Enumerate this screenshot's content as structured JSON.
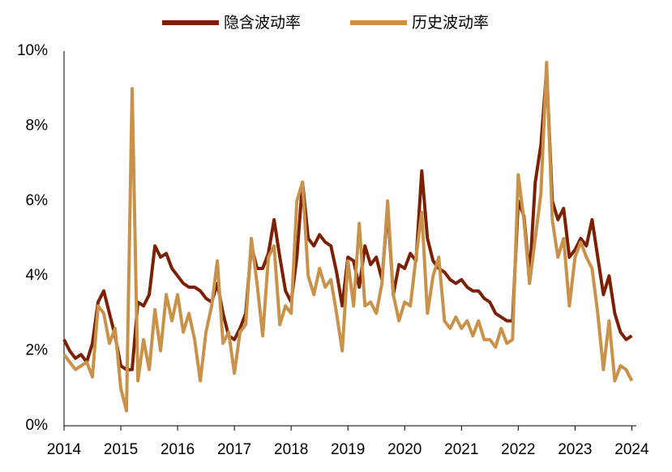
{
  "chart_data": {
    "type": "line",
    "x": [
      2014,
      2014.1,
      2014.2,
      2014.3,
      2014.4,
      2014.5,
      2014.6,
      2014.7,
      2014.8,
      2014.9,
      2015,
      2015.1,
      2015.2,
      2015.3,
      2015.4,
      2015.5,
      2015.6,
      2015.7,
      2015.8,
      2015.9,
      2016,
      2016.1,
      2016.2,
      2016.3,
      2016.4,
      2016.5,
      2016.6,
      2016.7,
      2016.8,
      2016.9,
      2017,
      2017.1,
      2017.2,
      2017.3,
      2017.4,
      2017.5,
      2017.6,
      2017.7,
      2017.8,
      2017.9,
      2018,
      2018.1,
      2018.2,
      2018.3,
      2018.4,
      2018.5,
      2018.6,
      2018.7,
      2018.8,
      2018.9,
      2019,
      2019.1,
      2019.2,
      2019.3,
      2019.4,
      2019.5,
      2019.6,
      2019.7,
      2019.8,
      2019.9,
      2020,
      2020.1,
      2020.2,
      2020.3,
      2020.4,
      2020.5,
      2020.6,
      2020.7,
      2020.8,
      2020.9,
      2021,
      2021.1,
      2021.2,
      2021.3,
      2021.4,
      2021.5,
      2021.6,
      2021.7,
      2021.8,
      2021.9,
      2022,
      2022.1,
      2022.2,
      2022.3,
      2022.4,
      2022.5,
      2022.6,
      2022.7,
      2022.8,
      2022.9,
      2023,
      2023.1,
      2023.2,
      2023.3,
      2023.4,
      2023.5,
      2023.6,
      2023.7,
      2023.8,
      2023.9,
      2024
    ],
    "series": [
      {
        "name": "隐含波动率",
        "color": "#7b2000",
        "values": [
          2.3,
          2.0,
          1.8,
          1.9,
          1.7,
          2.2,
          3.3,
          3.6,
          3.0,
          2.4,
          1.6,
          1.5,
          1.5,
          3.3,
          3.2,
          3.5,
          4.8,
          4.5,
          4.6,
          4.2,
          4.0,
          3.8,
          3.7,
          3.7,
          3.6,
          3.4,
          3.3,
          3.8,
          3.0,
          2.4,
          2.3,
          2.6,
          3.0,
          4.8,
          4.2,
          4.2,
          4.6,
          5.5,
          4.5,
          3.6,
          3.3,
          4.5,
          6.5,
          5.0,
          4.8,
          5.1,
          4.9,
          4.8,
          4.1,
          3.2,
          4.5,
          4.4,
          3.7,
          4.8,
          4.3,
          4.5,
          3.9,
          5.8,
          3.5,
          4.3,
          4.2,
          4.6,
          4.4,
          6.8,
          5.0,
          4.4,
          4.2,
          4.1,
          3.9,
          3.8,
          3.9,
          3.7,
          3.6,
          3.6,
          3.4,
          3.3,
          3.0,
          2.9,
          2.8,
          2.8,
          6.0,
          5.6,
          4.0,
          6.5,
          7.5,
          9.5,
          6.0,
          5.5,
          5.8,
          4.5,
          4.7,
          5.0,
          4.8,
          5.5,
          4.5,
          3.5,
          4.0,
          3.0,
          2.5,
          2.3,
          2.4
        ]
      },
      {
        "name": "历史波动率",
        "color": "#c8924a",
        "values": [
          1.9,
          1.7,
          1.5,
          1.6,
          1.7,
          1.3,
          3.2,
          3.0,
          2.2,
          2.6,
          1.0,
          0.4,
          9.0,
          1.2,
          2.3,
          1.5,
          3.1,
          2.0,
          3.5,
          2.8,
          3.5,
          2.5,
          3.0,
          2.3,
          1.2,
          2.5,
          3.2,
          4.4,
          2.2,
          2.5,
          1.4,
          2.5,
          2.7,
          5.0,
          3.8,
          2.4,
          4.5,
          4.8,
          2.7,
          3.2,
          3.0,
          6.0,
          6.5,
          4.0,
          3.5,
          4.2,
          3.7,
          3.9,
          3.0,
          2.0,
          4.4,
          3.2,
          5.4,
          3.2,
          3.3,
          3.0,
          3.8,
          6.0,
          3.5,
          2.8,
          3.3,
          3.2,
          4.5,
          5.7,
          3.0,
          4.0,
          4.5,
          2.8,
          2.6,
          2.9,
          2.6,
          2.8,
          2.4,
          2.8,
          2.3,
          2.3,
          2.1,
          2.6,
          2.2,
          2.3,
          6.7,
          5.5,
          3.8,
          5.0,
          6.2,
          9.7,
          5.5,
          4.5,
          5.0,
          3.2,
          4.5,
          4.9,
          4.5,
          4.2,
          3.0,
          1.5,
          2.8,
          1.2,
          1.6,
          1.5,
          1.2
        ]
      }
    ],
    "xlim": [
      2014,
      2024.08
    ],
    "xticks": [
      2014,
      2015,
      2016,
      2017,
      2018,
      2019,
      2020,
      2021,
      2022,
      2023,
      2024
    ],
    "ylim": [
      0,
      10
    ],
    "yticks": [
      {
        "value": 0,
        "label": "0%"
      },
      {
        "value": 2,
        "label": "2%"
      },
      {
        "value": 4,
        "label": "4%"
      },
      {
        "value": 6,
        "label": "6%"
      },
      {
        "value": 8,
        "label": "8%"
      },
      {
        "value": 10,
        "label": "10%"
      }
    ],
    "legend": "top"
  }
}
